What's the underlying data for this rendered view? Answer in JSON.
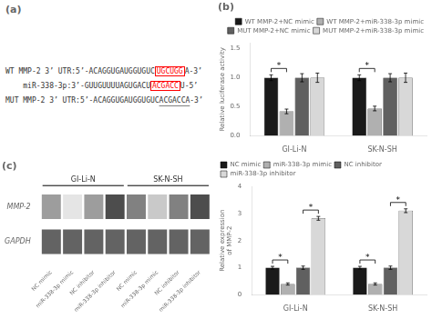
{
  "chart_data": [
    {
      "type": "text",
      "title": "(a)",
      "annotations": [
        {
          "segments": [
            {
              "text": "WT MMP-2 3’ UTR:5’-ACAGGUGAUGGUGUC"
            },
            {
              "text": "UGCUGG",
              "color": "red"
            },
            {
              "text": "A-3’"
            }
          ]
        },
        {
          "segments": [
            {
              "text": "    miR-338-3p:3’-GUUGUUUUAGUGACU"
            },
            {
              "text": "ACGACC",
              "color": "red"
            },
            {
              "text": "U-5’"
            }
          ]
        },
        {
          "segments": [
            {
              "text": "MUT MMP-2 3’ UTR:5’-ACAGGUGAUGGUGUC"
            },
            {
              "text": "ACGACCA",
              "line_style": "underline"
            },
            {
              "text": "-3’"
            }
          ]
        }
      ]
    },
    {
      "type": "bar",
      "title": "(b)",
      "categories": [
        "GI-Li-N",
        "SK-N-SH"
      ],
      "series": [
        {
          "name": "WT MMP-2+NC mimic",
          "color": "#1a1a1a",
          "values": [
            1.0,
            1.0
          ],
          "errors": [
            0.05,
            0.05
          ]
        },
        {
          "name": "WT MMP-2+miR-338-3p mimic",
          "color": "#b0b0b0",
          "values": [
            0.42,
            0.47
          ],
          "errors": [
            0.04,
            0.04
          ]
        },
        {
          "name": "MUT MMP-2+NC mimic",
          "color": "#606060",
          "values": [
            1.0,
            1.0
          ],
          "errors": [
            0.07,
            0.07
          ]
        },
        {
          "name": "MUT MMP-2+miR-338-3p mimic",
          "color": "#d8d8d8",
          "values": [
            1.0,
            1.0
          ],
          "errors": [
            0.08,
            0.08
          ]
        }
      ],
      "ylabel": "Relative luciferase activity",
      "ylim": [
        0,
        1.6
      ],
      "yticks": [
        {
          "value": 0,
          "label": "0.0"
        },
        0.5,
        {
          "value": 1,
          "label": "1.0"
        },
        1.5
      ],
      "grid": false,
      "legend": "upper right",
      "annotations": [
        {
          "text": "*",
          "category": "GI-Li-N",
          "between": [
            "WT MMP-2+NC mimic",
            "WT MMP-2+miR-338-3p mimic"
          ]
        },
        {
          "text": "*",
          "category": "SK-N-SH",
          "between": [
            "WT MMP-2+NC mimic",
            "WT MMP-2+miR-338-3p mimic"
          ]
        }
      ]
    },
    {
      "type": "heatmap",
      "title": "(c)",
      "groups": [
        "GI-Li-N",
        "SK-N-SH"
      ],
      "categories": [
        "NC mimic",
        "miR-338-3p mimic",
        "NC inhibitor",
        "miR-338-3p inhibitor"
      ],
      "rows": [
        "MMP-2",
        "GAPDH"
      ],
      "cells": [
        [
          0.45,
          0.12,
          0.45,
          0.82,
          0.58,
          0.25,
          0.58,
          0.82
        ],
        [
          0.72,
          0.72,
          0.72,
          0.72,
          0.72,
          0.72,
          0.72,
          0.72
        ]
      ]
    },
    {
      "type": "bar",
      "categories": [
        "GI-Li-N",
        "SK-N-SH"
      ],
      "series": [
        {
          "name": "NC mimic",
          "color": "#1a1a1a",
          "values": [
            1.0,
            1.0
          ],
          "errors": [
            0.05,
            0.05
          ]
        },
        {
          "name": "miR-338-3p mimic",
          "color": "#b0b0b0",
          "values": [
            0.4,
            0.4
          ],
          "errors": [
            0.04,
            0.04
          ]
        },
        {
          "name": "NC inhibitor",
          "color": "#606060",
          "values": [
            1.0,
            1.0
          ],
          "errors": [
            0.06,
            0.06
          ]
        },
        {
          "name": "miR-338-3p inhibitor",
          "color": "#d8d8d8",
          "values": [
            2.82,
            3.1
          ],
          "errors": [
            0.07,
            0.07
          ]
        }
      ],
      "ylabel": "Relative expression\nof MMP-2",
      "ylim": [
        0,
        4
      ],
      "yticks": [
        0,
        1,
        2,
        3,
        4
      ],
      "grid": false,
      "legend": "upper left",
      "annotations": [
        {
          "text": "*",
          "category": "GI-Li-N",
          "between": [
            "NC mimic",
            "miR-338-3p mimic"
          ]
        },
        {
          "text": "*",
          "category": "GI-Li-N",
          "between": [
            "NC inhibitor",
            "miR-338-3p inhibitor"
          ]
        },
        {
          "text": "*",
          "category": "SK-N-SH",
          "between": [
            "NC mimic",
            "miR-338-3p mimic"
          ]
        },
        {
          "text": "*",
          "category": "SK-N-SH",
          "between": [
            "NC inhibitor",
            "miR-338-3p inhibitor"
          ]
        }
      ]
    }
  ]
}
